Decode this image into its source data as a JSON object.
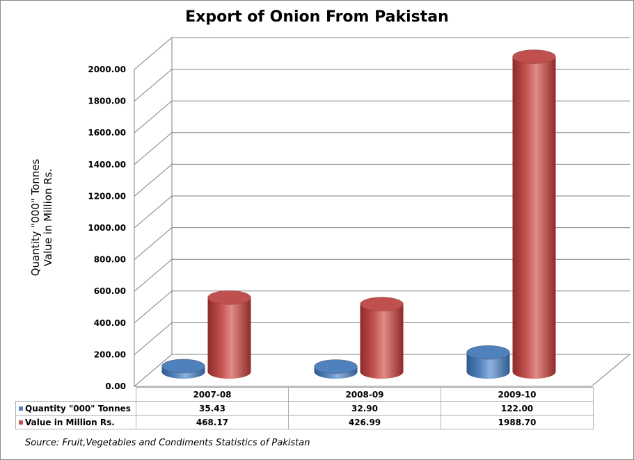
{
  "chart_data": {
    "type": "bar",
    "title": "Export of Onion From Pakistan",
    "ylabel_line1": "Quantity \"000\" Tonnes",
    "ylabel_line2": "Value in Million Rs.",
    "categories": [
      "2007-08",
      "2008-09",
      "2009-10"
    ],
    "series": [
      {
        "name": "Quantity \"000\" Tonnes",
        "values": [
          35.43,
          32.9,
          122.0
        ],
        "value_labels": [
          "35.43",
          "32.90",
          "122.00"
        ],
        "color": "#4f81bd"
      },
      {
        "name": "Value in Million Rs.",
        "values": [
          468.17,
          426.99,
          1988.7
        ],
        "value_labels": [
          "468.17",
          "426.99",
          "1988.70"
        ],
        "color": "#c0504d"
      }
    ],
    "ylim": [
      0,
      2000
    ],
    "yticks": [
      "0.00",
      "200.00",
      "400.00",
      "600.00",
      "800.00",
      "1000.00",
      "1200.00",
      "1400.00",
      "1600.00",
      "1800.00",
      "2000.00"
    ],
    "legend": "data-table",
    "grid": true,
    "source": "Source: Fruit,Vegetables and Condiments Statistics of Pakistan"
  }
}
